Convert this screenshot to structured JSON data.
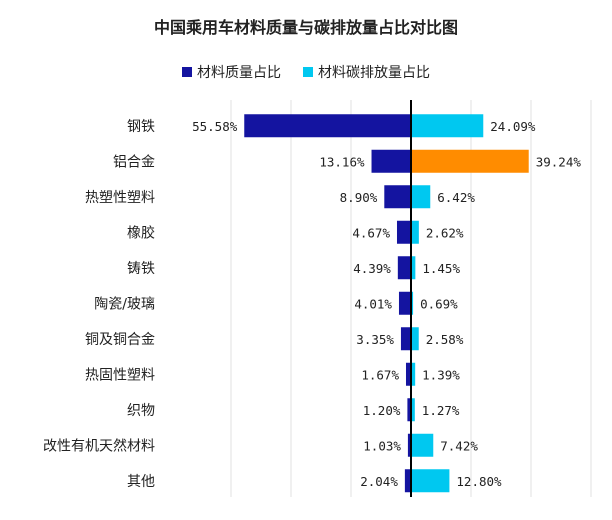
{
  "chart_data": {
    "type": "bar",
    "title": "中国乘用车材料质量与碳排放量占比对比图",
    "legend_position": "top",
    "categories": [
      "钢铁",
      "铝合金",
      "热塑性塑料",
      "橡胶",
      "铸铁",
      "陶瓷/玻璃",
      "铜及铜合金",
      "热固性塑料",
      "织物",
      "改性有机天然材料",
      "其他"
    ],
    "series": [
      {
        "name": "材料质量占比",
        "color": "#1414a0",
        "direction": "left",
        "values": [
          55.58,
          13.16,
          8.9,
          4.67,
          4.39,
          4.01,
          3.35,
          1.67,
          1.2,
          1.03,
          2.04
        ],
        "labels": [
          "55.58%",
          "13.16%",
          "8.90%",
          "4.67%",
          "4.39%",
          "4.01%",
          "3.35%",
          "1.67%",
          "1.20%",
          "1.03%",
          "2.04%"
        ]
      },
      {
        "name": "材料碳排放量占比",
        "color": "#00c8f0",
        "highlight_color": "#ff8c00",
        "highlight_index": 1,
        "direction": "right",
        "values": [
          24.09,
          39.24,
          6.42,
          2.62,
          1.45,
          0.69,
          2.58,
          1.39,
          1.27,
          7.42,
          12.8
        ],
        "labels": [
          "24.09%",
          "39.24%",
          "6.42%",
          "2.62%",
          "1.45%",
          "0.69%",
          "2.58%",
          "1.39%",
          "1.27%",
          "7.42%",
          "12.80%"
        ]
      }
    ],
    "grid": true,
    "grid_color": "#e2e2e2",
    "axis_color": "#000000"
  }
}
